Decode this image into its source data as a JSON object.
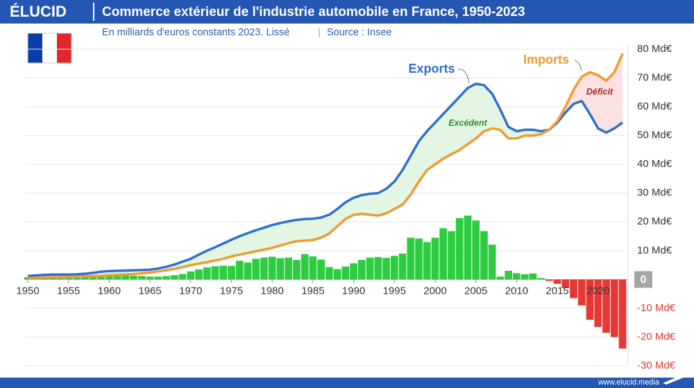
{
  "chart_data": {
    "type": "line",
    "brand": "ÉLUCID",
    "title": "Commerce extérieur de l'industrie automobile en France, 1950-2023",
    "subtitle": "En milliards d'euros constants 2023. Lissé",
    "source": "Source : Insee",
    "footer": "www.elucid.media",
    "x": [
      1950,
      1951,
      1952,
      1953,
      1954,
      1955,
      1956,
      1957,
      1958,
      1959,
      1960,
      1961,
      1962,
      1963,
      1964,
      1965,
      1966,
      1967,
      1968,
      1969,
      1970,
      1971,
      1972,
      1973,
      1974,
      1975,
      1976,
      1977,
      1978,
      1979,
      1980,
      1981,
      1982,
      1983,
      1984,
      1985,
      1986,
      1987,
      1988,
      1989,
      1990,
      1991,
      1992,
      1993,
      1994,
      1995,
      1996,
      1997,
      1998,
      1999,
      2000,
      2001,
      2002,
      2003,
      2004,
      2005,
      2006,
      2007,
      2008,
      2009,
      2010,
      2011,
      2012,
      2013,
      2014,
      2015,
      2016,
      2017,
      2018,
      2019,
      2020,
      2021,
      2022,
      2023
    ],
    "xlim": [
      1950,
      2023
    ],
    "xticks": [
      1950,
      1955,
      1960,
      1965,
      1970,
      1975,
      1980,
      1985,
      1990,
      1995,
      2000,
      2005,
      2010,
      2015,
      2020
    ],
    "ylim": [
      -30,
      80
    ],
    "yticks": [
      {
        "value": 80,
        "label": "80 Md€"
      },
      {
        "value": 70,
        "label": "70 Md€"
      },
      {
        "value": 60,
        "label": "60 Md€"
      },
      {
        "value": 50,
        "label": "50 Md€"
      },
      {
        "value": 40,
        "label": "40 Md€"
      },
      {
        "value": 30,
        "label": "30 Md€"
      },
      {
        "value": 20,
        "label": "20 Md€"
      },
      {
        "value": 10,
        "label": "10 Md€"
      },
      0,
      {
        "value": -10,
        "label": "-10 Md€"
      },
      {
        "value": -20,
        "label": "-20 Md€"
      },
      {
        "value": -30,
        "label": "-30 Md€"
      }
    ],
    "grid": true,
    "series": [
      {
        "name": "Exports",
        "color": "#2f6fce",
        "values": [
          1.2,
          1.4,
          1.6,
          1.7,
          1.7,
          1.7,
          1.8,
          2.0,
          2.3,
          2.7,
          2.9,
          3.0,
          3.1,
          3.2,
          3.3,
          3.4,
          3.8,
          4.4,
          5.2,
          6.2,
          7.2,
          8.6,
          10.0,
          11.2,
          12.5,
          13.8,
          15.0,
          16.1,
          17.1,
          18.0,
          18.9,
          19.6,
          20.2,
          20.7,
          21.0,
          21.1,
          21.5,
          22.5,
          24.5,
          26.8,
          28.4,
          29.3,
          29.8,
          30.0,
          31.5,
          34.0,
          38.0,
          43.0,
          48.0,
          51.5,
          54.5,
          57.5,
          60.5,
          63.5,
          66.5,
          68.0,
          67.5,
          64.5,
          59.0,
          53.0,
          51.5,
          52.0,
          52.0,
          51.5,
          52.0,
          54.5,
          58.0,
          61.0,
          62.0,
          57.5,
          52.5,
          51.0,
          52.5,
          54.5
        ]
      },
      {
        "name": "Imports",
        "color": "#f39a2e",
        "values": [
          0.5,
          0.6,
          0.7,
          0.8,
          0.8,
          0.9,
          1.0,
          1.1,
          1.2,
          1.3,
          1.5,
          1.6,
          1.7,
          1.9,
          2.1,
          2.4,
          2.8,
          3.2,
          3.7,
          4.3,
          5.0,
          5.5,
          6.0,
          6.6,
          7.2,
          8.0,
          8.6,
          9.2,
          9.8,
          10.4,
          11.0,
          11.8,
          12.6,
          13.3,
          13.5,
          13.7,
          14.5,
          16.0,
          18.5,
          21.0,
          22.5,
          22.8,
          22.5,
          22.2,
          23.0,
          24.5,
          26.0,
          29.5,
          34.0,
          38.0,
          40.0,
          42.0,
          43.5,
          45.0,
          47.0,
          49.0,
          51.5,
          52.5,
          52.0,
          49.0,
          49.0,
          50.0,
          50.0,
          50.5,
          52.0,
          55.0,
          60.0,
          66.0,
          70.5,
          72.0,
          71.0,
          69.0,
          72.0,
          78.5
        ]
      }
    ],
    "balance": {
      "type": "bar",
      "color": "#2ecc40",
      "negative_color": "#e53935",
      "values": [
        0.8,
        0.8,
        0.9,
        0.9,
        0.9,
        0.8,
        0.8,
        0.9,
        1.1,
        1.4,
        1.4,
        1.4,
        1.4,
        1.3,
        1.2,
        1.0,
        1.0,
        1.2,
        1.5,
        1.9,
        2.8,
        3.5,
        4.2,
        4.6,
        4.8,
        4.7,
        6.5,
        5.9,
        7.2,
        7.6,
        7.9,
        7.4,
        7.6,
        6.8,
        8.8,
        8.0,
        6.9,
        4.3,
        3.6,
        4.5,
        5.6,
        6.8,
        7.6,
        7.8,
        7.5,
        8.2,
        9.0,
        14.5,
        14.2,
        13.0,
        14.5,
        17.8,
        16.8,
        21.3,
        22.2,
        20.5,
        16.8,
        12.1,
        1.0,
        3.0,
        2.2,
        1.8,
        2.1,
        0.5,
        -0.5,
        -1.5,
        -3.0,
        -6.5,
        -9.0,
        -14.0,
        -16.5,
        -18.5,
        -20.0,
        -24.0
      ]
    },
    "annotations": [
      {
        "text": "Excédent",
        "color": "#2e8b2e"
      },
      {
        "text": "Déficit",
        "color": "#a3242a"
      }
    ]
  }
}
